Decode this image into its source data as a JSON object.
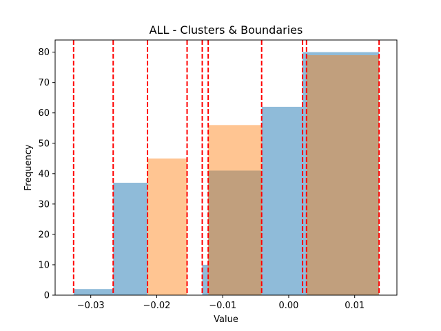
{
  "chart_data": {
    "type": "bar",
    "title": "ALL - Clusters & Boundaries",
    "xlabel": "Value",
    "ylabel": "Frequency",
    "xlim": [
      -0.0354,
      0.0164
    ],
    "ylim": [
      0,
      84
    ],
    "xticks": [
      -0.03,
      -0.02,
      -0.01,
      0.0,
      0.01
    ],
    "xtick_labels": [
      "−0.03",
      "−0.02",
      "−0.01",
      "0.00",
      "0.01"
    ],
    "yticks": [
      0,
      10,
      20,
      30,
      40,
      50,
      60,
      70,
      80
    ],
    "ytick_labels": [
      "0",
      "10",
      "20",
      "30",
      "40",
      "50",
      "60",
      "70",
      "80"
    ],
    "grid": false,
    "legend": "none",
    "series": [
      {
        "color": "#1f77b4",
        "opacity": 0.5,
        "bins": [
          {
            "x0": -0.0326,
            "x1": -0.0266,
            "value": 2
          },
          {
            "x0": -0.0266,
            "x1": -0.0214,
            "value": 37
          },
          {
            "x0": -0.0131,
            "x1": -0.0122,
            "value": 10
          },
          {
            "x0": -0.0122,
            "x1": -0.0041,
            "value": 41
          },
          {
            "x0": -0.0041,
            "x1": 0.0021,
            "value": 62
          },
          {
            "x0": 0.0021,
            "x1": 0.0137,
            "value": 80
          }
        ]
      },
      {
        "color": "#ff7f0e",
        "opacity": 0.45,
        "bins": [
          {
            "x0": -0.0214,
            "x1": -0.0154,
            "value": 45
          },
          {
            "x0": -0.0122,
            "x1": -0.0041,
            "value": 56
          },
          {
            "x0": 0.0027,
            "x1": 0.0137,
            "value": 79
          }
        ]
      }
    ],
    "boundaries": {
      "color": "#ff0000",
      "style": "dashed",
      "x": [
        -0.0326,
        -0.0266,
        -0.0214,
        -0.0154,
        -0.0131,
        -0.0122,
        -0.0041,
        0.0021,
        0.0027,
        0.0137
      ]
    }
  }
}
